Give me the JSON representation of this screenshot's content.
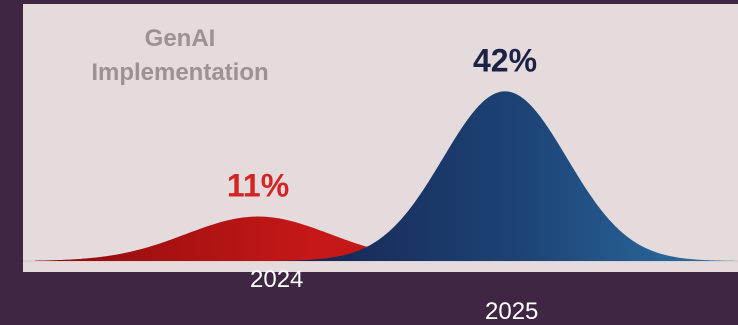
{
  "chart_data": {
    "type": "area",
    "title": "GenAI\nImplementation",
    "categories": [
      "2024",
      "2025"
    ],
    "values": [
      11,
      42
    ],
    "value_labels": [
      "11%",
      "42%"
    ],
    "unit": "%",
    "ylim": [
      0,
      50
    ],
    "colors": {
      "2024": "#c11a1a",
      "2025": "#1f4a7c",
      "label_2024": "#d42424",
      "label_2025": "#1c2146"
    }
  }
}
